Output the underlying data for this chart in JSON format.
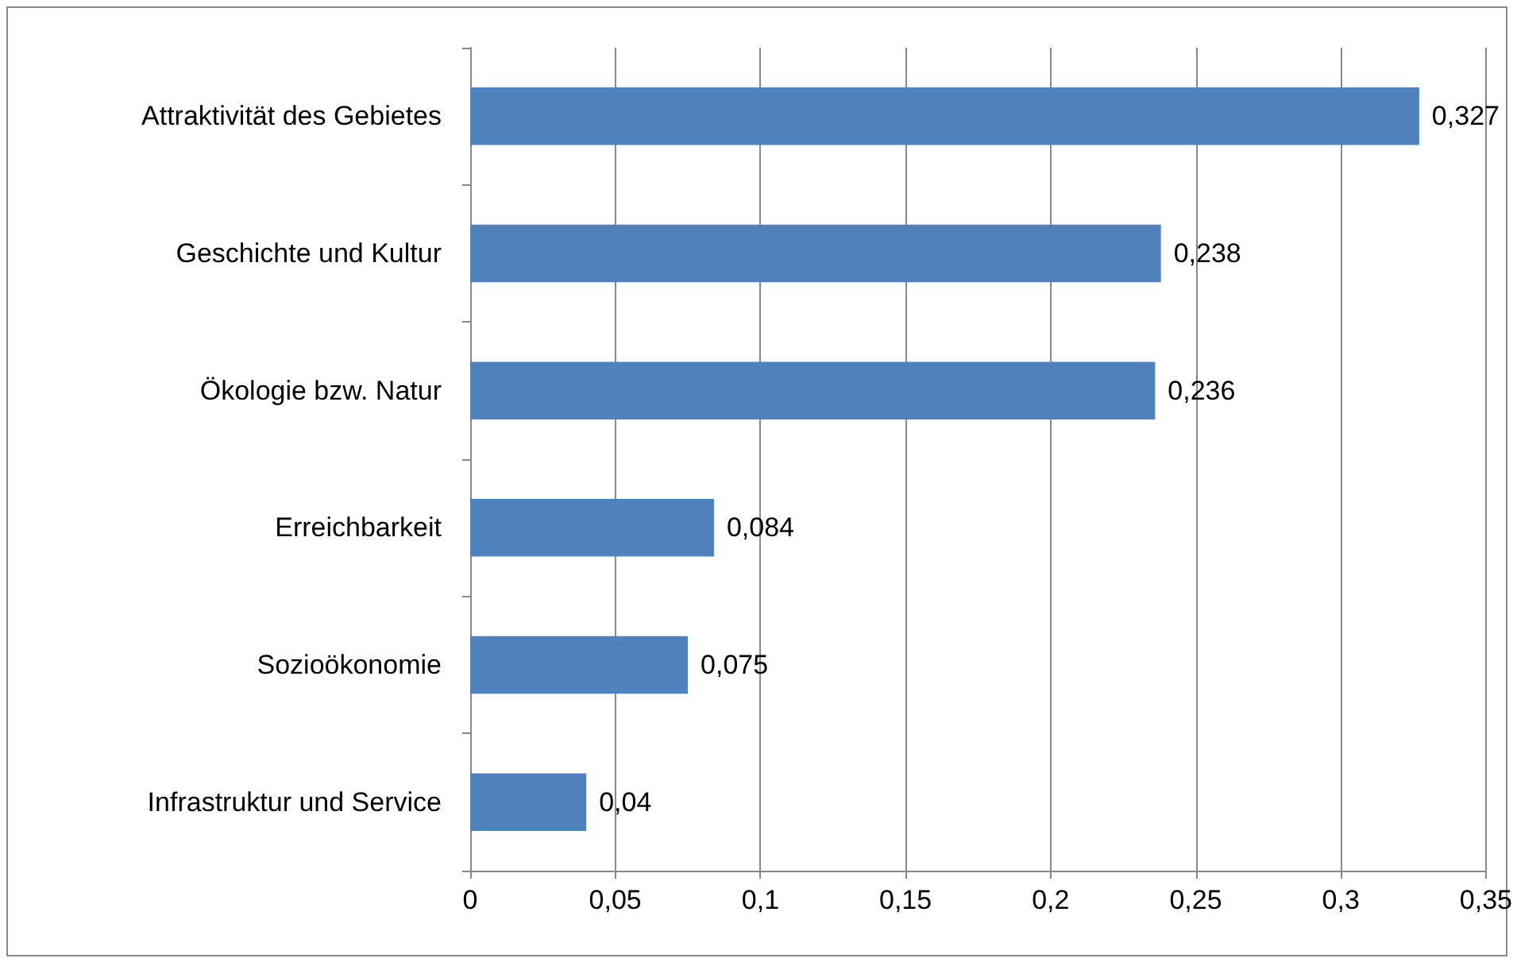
{
  "chart_data": {
    "type": "bar",
    "orientation": "horizontal",
    "categories": [
      "Attraktivität des Gebietes",
      "Geschichte und Kultur",
      "Ökologie bzw. Natur",
      "Erreichbarkeit",
      "Sozioökonomie",
      "Infrastruktur und Service"
    ],
    "values": [
      0.327,
      0.238,
      0.236,
      0.084,
      0.075,
      0.04
    ],
    "value_labels": [
      "0,327",
      "0,238",
      "0,236",
      "0,084",
      "0,075",
      "0,04"
    ],
    "color": "#4f81bd",
    "xlim": [
      0,
      0.35
    ],
    "xticks": [
      0,
      {
        "value": 0.05,
        "label": "0,05"
      },
      {
        "value": 0.1,
        "label": "0,1"
      },
      {
        "value": 0.15,
        "label": "0,15"
      },
      {
        "value": 0.2,
        "label": "0,2"
      },
      {
        "value": 0.25,
        "label": "0,25"
      },
      {
        "value": 0.3,
        "label": "0,3"
      },
      {
        "value": 0.35,
        "label": "0,35"
      }
    ],
    "grid": "x"
  }
}
